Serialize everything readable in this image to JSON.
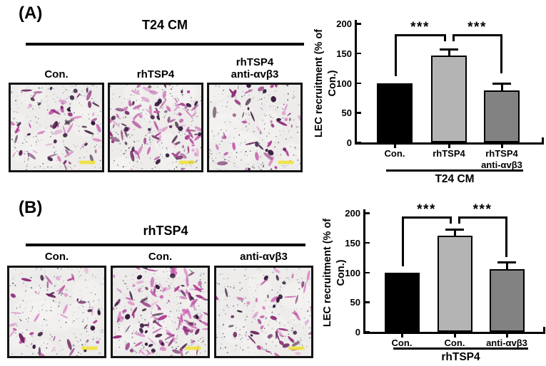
{
  "figure": {
    "description_labels": {
      "panel_a_tag": "(A)",
      "panel_b_tag": "(B)"
    }
  },
  "panels": [
    {
      "tag": "(A)",
      "group_title": "T24 CM",
      "column_labels": [
        "Con.",
        "rhTSP4",
        "rhTSP4\nanti-αvβ3"
      ],
      "micrographs": [
        {
          "name": "t24cm-con",
          "relative_density": "medium",
          "cells": 62,
          "dark_blobs": 12,
          "seed": 101
        },
        {
          "name": "t24cm-rhtsp4",
          "relative_density": "high",
          "cells": 110,
          "dark_blobs": 16,
          "seed": 202
        },
        {
          "name": "t24cm-rhtsp4-anti-avb3",
          "relative_density": "medium-low",
          "cells": 50,
          "dark_blobs": 9,
          "seed": 303
        }
      ]
    },
    {
      "tag": "(B)",
      "group_title": "rhTSP4",
      "column_labels": [
        "Con.",
        "Con.",
        "anti-αvβ3"
      ],
      "micrographs": [
        {
          "name": "rhtsp4-con-1",
          "relative_density": "low",
          "cells": 44,
          "dark_blobs": 8,
          "seed": 404
        },
        {
          "name": "rhtsp4-con-2",
          "relative_density": "very-high",
          "cells": 135,
          "dark_blobs": 14,
          "seed": 505
        },
        {
          "name": "rhtsp4-anti-avb3",
          "relative_density": "medium-low",
          "cells": 54,
          "dark_blobs": 9,
          "seed": 606
        }
      ]
    }
  ],
  "micro_style": {
    "background": "#edecea",
    "cell_colors": [
      "#c657ac",
      "#b03d96",
      "#922f7d",
      "#d989c5",
      "#6d2560",
      "#40203f",
      "#e0a6d4"
    ],
    "speckle_colors": [
      "#64748a",
      "#3f4a58",
      "#8d98a6",
      "#2e3642"
    ],
    "scale_bar_color": "#efe23f"
  },
  "chart_data": [
    {
      "type": "bar",
      "title": "",
      "categories": [
        "Con.",
        "rhTSP4",
        "rhTSP4\nanti-αvβ3"
      ],
      "values": [
        100,
        146,
        87
      ],
      "errors": [
        0,
        11,
        12
      ],
      "bar_colors": [
        "#000000",
        "#b4b4b4",
        "#828282"
      ],
      "ylabel": "LEC recruitment\n(% of Con.)",
      "yticks": [
        0,
        50,
        100,
        150,
        200
      ],
      "ylim": [
        0,
        200
      ],
      "grid": false,
      "group_label": "T24 CM",
      "significance": [
        {
          "between": [
            0,
            1
          ],
          "label": "***",
          "bracket_y": 182,
          "left_drop_to": 111,
          "right_drop_to": 170
        },
        {
          "between": [
            1,
            2
          ],
          "label": "***",
          "bracket_y": 182,
          "left_drop_to": 170,
          "right_drop_to": 116
        }
      ]
    },
    {
      "type": "bar",
      "title": "",
      "categories": [
        "Con.",
        "Con.",
        "anti-αvβ3"
      ],
      "values": [
        100,
        162,
        105
      ],
      "errors": [
        0,
        10,
        12
      ],
      "bar_colors": [
        "#000000",
        "#b4b4b4",
        "#828282"
      ],
      "ylabel": "LEC recruitment\n(% of Con.)",
      "yticks": [
        0,
        50,
        100,
        150,
        200
      ],
      "ylim": [
        0,
        200
      ],
      "grid": false,
      "group_label": "rhTSP4",
      "significance": [
        {
          "between": [
            0,
            1
          ],
          "label": "***",
          "bracket_y": 194,
          "left_drop_to": 110,
          "right_drop_to": 182
        },
        {
          "between": [
            1,
            2
          ],
          "label": "***",
          "bracket_y": 194,
          "left_drop_to": 182,
          "right_drop_to": 126
        }
      ]
    }
  ]
}
